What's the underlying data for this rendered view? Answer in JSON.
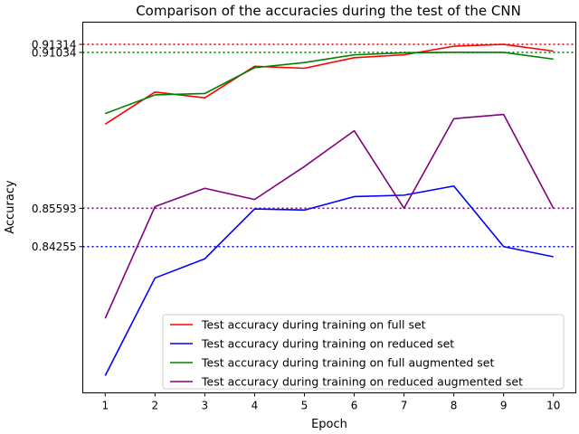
{
  "chart_data": {
    "type": "line",
    "title": "Comparison of the accuracies during the test of the CNN",
    "xlabel": "Epoch",
    "ylabel": "Accuracy",
    "x": [
      1,
      2,
      3,
      4,
      5,
      6,
      7,
      8,
      9,
      10
    ],
    "xlim": [
      0.55,
      10.45
    ],
    "ylim": [
      0.7915,
      0.9209
    ],
    "grid": false,
    "legend_position": "lower-right",
    "series": [
      {
        "name": "Test accuracy during training on full set",
        "color": "#ff0000",
        "values": [
          0.8853,
          0.8965,
          0.8945,
          0.9055,
          0.9048,
          0.9085,
          0.9095,
          0.9125,
          0.91314,
          0.9108
        ]
      },
      {
        "name": "Test accuracy during training on reduced set",
        "color": "#0000ff",
        "values": [
          0.7975,
          0.8316,
          0.8383,
          0.8557,
          0.8553,
          0.86,
          0.8605,
          0.8637,
          0.84255,
          0.839
        ]
      },
      {
        "name": "Test accuracy during training on full augmented set",
        "color": "#008000",
        "values": [
          0.889,
          0.8955,
          0.896,
          0.905,
          0.9068,
          0.9095,
          0.9102,
          0.9104,
          0.91034,
          0.908
        ]
      },
      {
        "name": "Test accuracy during training on reduced augmented set",
        "color": "#800080",
        "values": [
          0.8175,
          0.8565,
          0.8629,
          0.859,
          0.8705,
          0.883,
          0.85593,
          0.8872,
          0.8887,
          0.85593
        ]
      }
    ],
    "reference_lines": [
      {
        "label": "0.91314",
        "value": 0.91314,
        "color": "#ff0000"
      },
      {
        "label": "0.91034",
        "value": 0.91034,
        "color": "#008000"
      },
      {
        "label": "0.85593",
        "value": 0.85593,
        "color": "#800080"
      },
      {
        "label": "0.84255",
        "value": 0.84255,
        "color": "#0000ff"
      }
    ],
    "xticks": [
      "1",
      "2",
      "3",
      "4",
      "5",
      "6",
      "7",
      "8",
      "9",
      "10"
    ]
  }
}
